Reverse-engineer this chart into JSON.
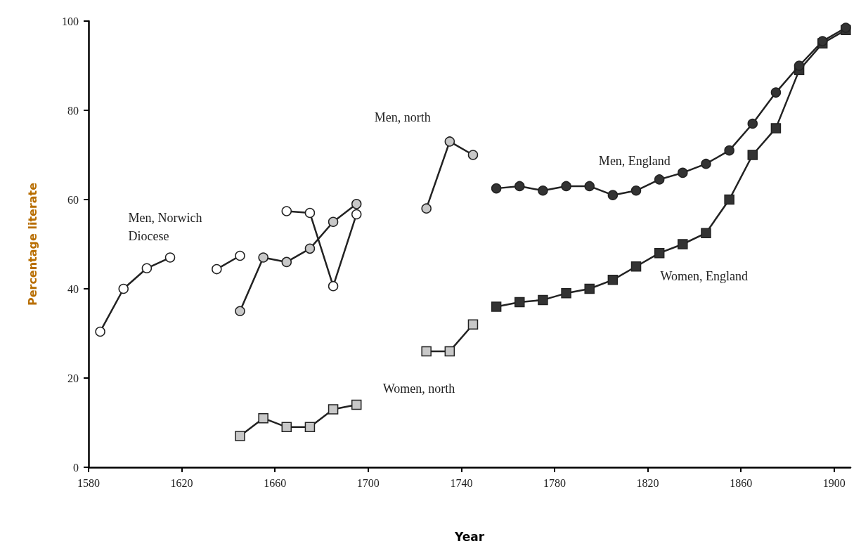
{
  "chart_data": {
    "type": "line",
    "xlabel": "Year",
    "ylabel": "Percentage literate",
    "xlim": [
      1580,
      1907
    ],
    "xticks": [
      1580,
      1620,
      1660,
      1700,
      1740,
      1780,
      1820,
      1860,
      1900
    ],
    "ylim": [
      0,
      100
    ],
    "yticks": [
      0,
      20,
      40,
      60,
      80,
      100
    ],
    "grid": false,
    "marker": "circle",
    "line_style": "solid",
    "series": [
      {
        "name": "Men, Norwich Diocese",
        "color": "#ffffff",
        "x": [
          1585,
          1595,
          1605,
          1615,
          1625,
          1635,
          1645
        ],
        "values": [
          30.4,
          40,
          44.6,
          47,
          null,
          44.4,
          47.4
        ]
      },
      {
        "color": "#ffffff",
        "x": [
          1665,
          1675,
          1685,
          1695
        ],
        "values": [
          57.4,
          57,
          40.6,
          56.7
        ]
      },
      {
        "name": "Men, north",
        "color": "#c8c8c8",
        "x": [
          1645,
          1655,
          1665,
          1675,
          1685,
          1695,
          1710,
          1725,
          1735,
          1745
        ],
        "values": [
          35,
          47,
          46,
          49,
          55,
          59,
          null,
          58,
          73,
          70
        ]
      },
      {
        "name": "Women, north",
        "color": "#c8c8c8",
        "marker": "square",
        "x": [
          1645,
          1655,
          1665,
          1675,
          1685,
          1695,
          1710,
          1725,
          1735,
          1745
        ],
        "values": [
          7,
          11,
          9,
          9,
          13,
          14,
          null,
          26,
          26,
          32
        ]
      },
      {
        "name": "Men, England",
        "color": "#333333",
        "x": [
          1755,
          1765,
          1775,
          1785,
          1795,
          1805,
          1815,
          1825,
          1835,
          1845,
          1855,
          1865,
          1875,
          1885,
          1895,
          1905
        ],
        "values": [
          62.5,
          63,
          62,
          63,
          63,
          61,
          62,
          64.5,
          66,
          68,
          71,
          77,
          84,
          90,
          95.5,
          98.5
        ]
      },
      {
        "name": "Women, England",
        "color": "#333333",
        "marker": "square",
        "x": [
          1755,
          1765,
          1775,
          1785,
          1795,
          1805,
          1815,
          1825,
          1835,
          1845,
          1855,
          1865,
          1875,
          1885,
          1895,
          1905
        ],
        "values": [
          36,
          37,
          37.5,
          39,
          40,
          42,
          45,
          48,
          50,
          52.5,
          60,
          70,
          76,
          89,
          95,
          98
        ]
      }
    ]
  }
}
